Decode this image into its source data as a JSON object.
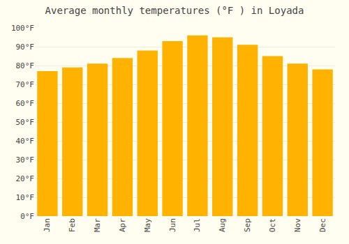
{
  "chart_data": {
    "type": "bar",
    "title": "Average monthly temperatures (°F ) in Loyada",
    "categories": [
      "Jan",
      "Feb",
      "Mar",
      "Apr",
      "May",
      "Jun",
      "Jul",
      "Aug",
      "Sep",
      "Oct",
      "Nov",
      "Dec"
    ],
    "values": [
      77,
      79,
      81,
      84,
      88,
      93,
      96,
      95,
      91,
      85,
      81,
      78
    ],
    "color": "#FFB300",
    "ylim": [
      0,
      100
    ],
    "yticks": [
      {
        "value": 0,
        "label": "0°F"
      },
      {
        "value": 10,
        "label": "10°F"
      },
      {
        "value": 20,
        "label": "20°F"
      },
      {
        "value": 30,
        "label": "30°F"
      },
      {
        "value": 40,
        "label": "40°F"
      },
      {
        "value": 50,
        "label": "50°F"
      },
      {
        "value": 60,
        "label": "60°F"
      },
      {
        "value": 70,
        "label": "70°F"
      },
      {
        "value": 80,
        "label": "80°F"
      },
      {
        "value": 90,
        "label": "90°F"
      },
      {
        "value": 100,
        "label": "100°F"
      }
    ],
    "grid": true
  }
}
